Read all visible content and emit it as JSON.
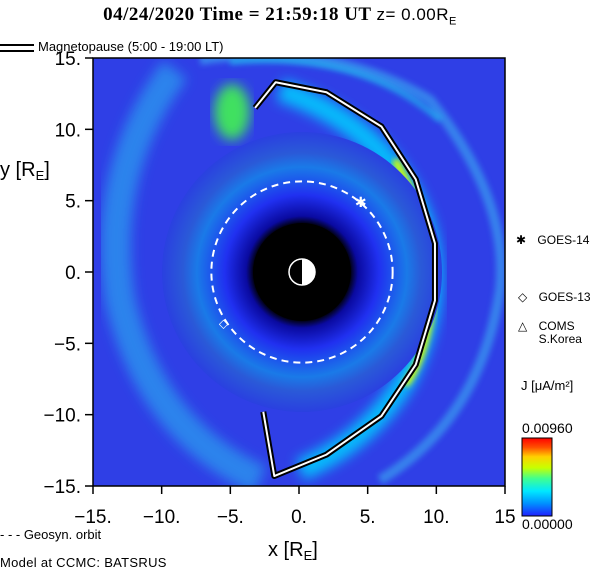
{
  "header": {
    "date_time": "04/24/2020 Time = 21:59:18 UT",
    "z_label": "z= 0.00R",
    "z_sub": "E"
  },
  "legend": {
    "magnetopause": "Magnetopause (5:00 - 19:00 LT)",
    "geosyn": "- - - Geosyn. orbit"
  },
  "footer": {
    "model": "Model at CCMC: BATSRUS"
  },
  "satellites": [
    {
      "name": "GOES-14",
      "symbol": "✱",
      "x": 4.5,
      "y": 4.9
    },
    {
      "name": "GOES-13",
      "symbol": "◇",
      "x": -5.5,
      "y": -3.6
    },
    {
      "name": "COMS\nS.Korea",
      "symbol": "△"
    }
  ],
  "colorbar": {
    "label": "J [μA/m²]",
    "max": "0.00960",
    "min": "0.00000",
    "colors": [
      "#2020ff",
      "#0090ff",
      "#00e8ff",
      "#40ff90",
      "#c8ff00",
      "#ffd000",
      "#ff5000",
      "#ff0000"
    ]
  },
  "chart_data": {
    "type": "heatmap",
    "xlabel": "x [RE]",
    "ylabel": "y [RE]",
    "xlim": [
      -15,
      15
    ],
    "ylim": [
      -15,
      15
    ],
    "x_ticks": [
      "-15.",
      "-10.",
      "-5.",
      "0.",
      "5.",
      "10.",
      "15"
    ],
    "y_ticks": [
      "15.",
      "10.",
      "5.",
      "0.",
      "-5.",
      "-10.",
      "-15."
    ],
    "y_tick_values": [
      15,
      10,
      5,
      0,
      -5,
      -10,
      -15
    ],
    "x_tick_values": [
      -15,
      -10,
      -5,
      0,
      5,
      10,
      15
    ],
    "geosync_radius": 6.6,
    "earth_shadow_radius": 3.5,
    "magnetopause": [
      [
        -3.2,
        11.5
      ],
      [
        -1.7,
        13.3
      ],
      [
        2.0,
        12.6
      ],
      [
        6.0,
        10.2
      ],
      [
        8.5,
        6.5
      ],
      [
        9.9,
        2.0
      ],
      [
        9.9,
        -2.0
      ],
      [
        8.5,
        -6.5
      ],
      [
        6.0,
        -10.1
      ],
      [
        2.0,
        -12.8
      ],
      [
        -1.8,
        -14.3
      ],
      [
        -2.6,
        -9.8
      ]
    ]
  }
}
